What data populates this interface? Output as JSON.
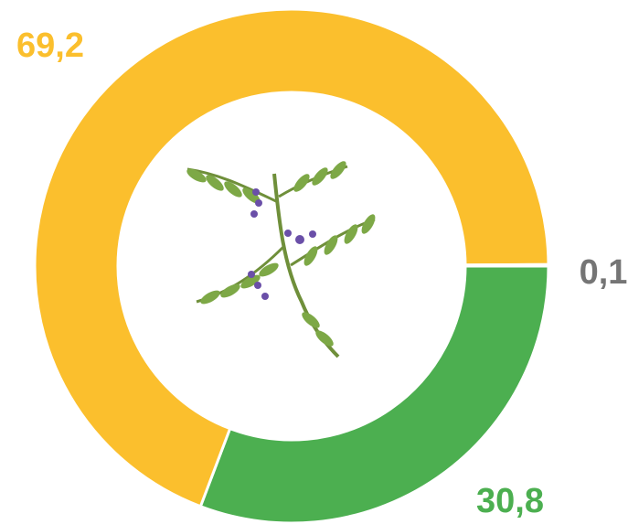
{
  "chart_data": {
    "type": "pie",
    "values": [
      30.8,
      69.2,
      0.1
    ],
    "value_labels": [
      "30,8",
      "69,2",
      "0,1"
    ],
    "colors": [
      "#4caf50",
      "#fbbf2d",
      "#757575"
    ],
    "donut": true
  }
}
